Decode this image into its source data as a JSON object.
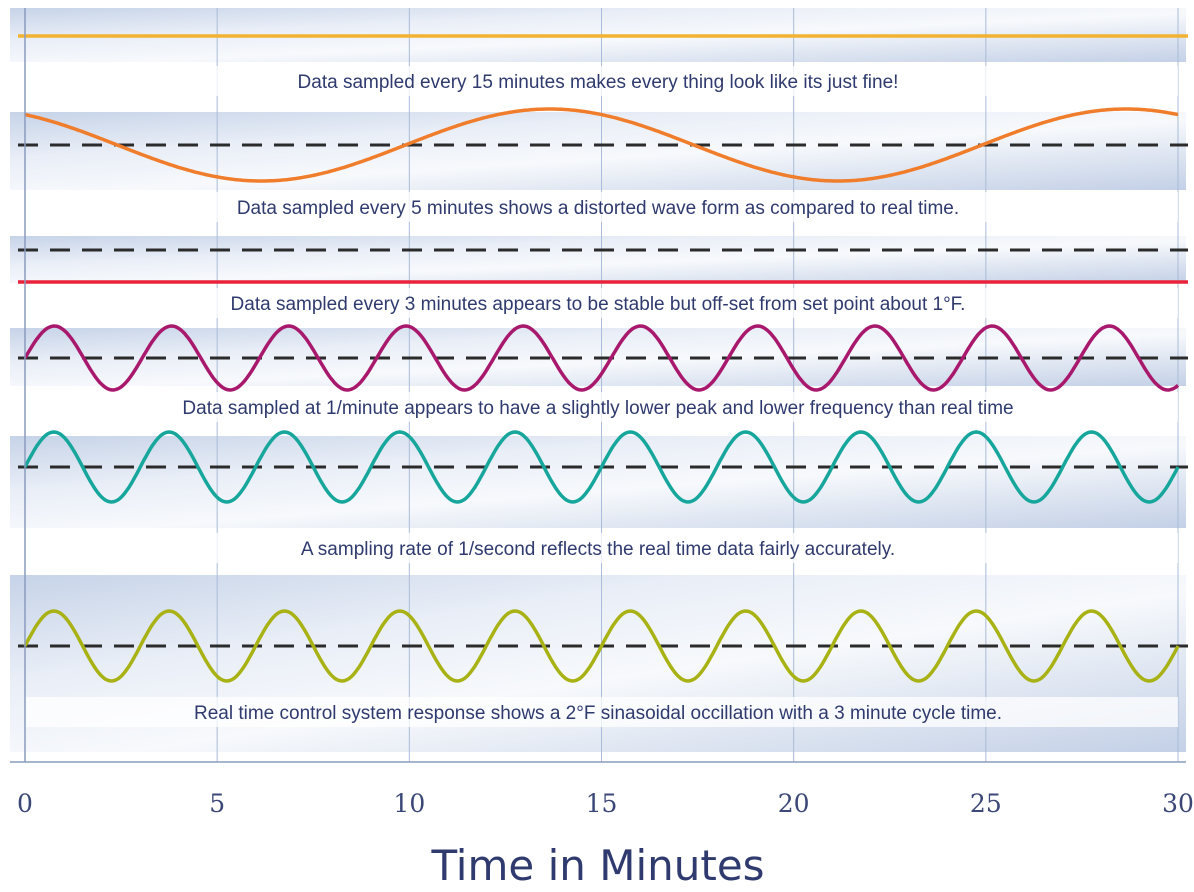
{
  "chart_data": {
    "type": "line",
    "x_range": [
      0,
      30
    ],
    "x_ticks": [
      "0",
      "5",
      "10",
      "15",
      "20",
      "25",
      "30"
    ],
    "xlabel": "Time in Minutes",
    "panels": [
      {
        "caption": "Data sampled every 15 minutes makes every thing look like its just fine!",
        "color": "#f2b232",
        "shape": "flat",
        "offset": 0
      },
      {
        "caption": "Data sampled every 5 minutes shows a distorted wave form as compared to real time.",
        "color": "#f07d2b",
        "shape": "sine",
        "period": 15,
        "phase": 2.4
      },
      {
        "caption": "Data sampled every 3 minutes appears to be stable but off-set from set point about 1°F.",
        "color": "#e8233a",
        "shape": "flat",
        "offset": -1
      },
      {
        "caption": "Data sampled at 1/minute appears to have a slightly lower peak and lower frequency than real time",
        "color": "#a8186c",
        "shape": "sine",
        "period": 3.05,
        "phase": 0
      },
      {
        "caption": "A sampling rate of 1/second reflects the real time data fairly accurately.",
        "color": "#17a69b",
        "shape": "sine",
        "period": 3,
        "phase": 0
      },
      {
        "caption": "Real time control system response shows a 2°F sinasoidal occillation with a 3 minute cycle time.",
        "color": "#a9b214",
        "shape": "sine",
        "period": 3,
        "phase": 0
      }
    ]
  }
}
